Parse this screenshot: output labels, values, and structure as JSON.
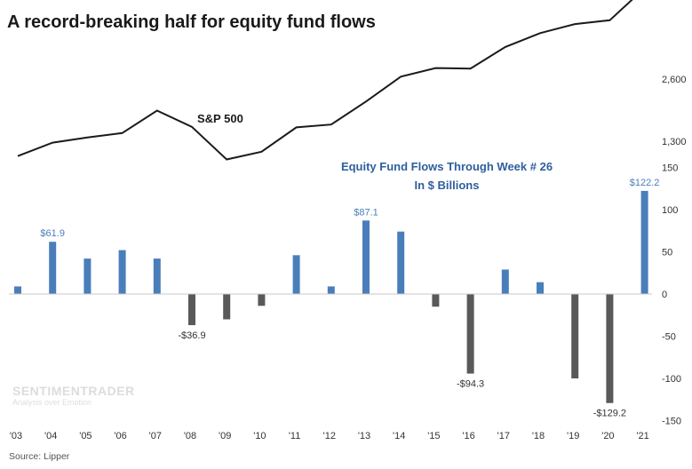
{
  "title": "A record-breaking half for equity fund flows",
  "source": "Source: Lipper",
  "watermark": {
    "name": "SENTIMENTRADER",
    "tagline": "Analysis over Emotion"
  },
  "colors": {
    "positive_bar": "#4a7ebb",
    "negative_bar": "#595959",
    "line": "#1a1a1a",
    "fund_title": "#2e5f9e"
  },
  "chart_data": [
    {
      "type": "line",
      "series_label": "S&P 500",
      "x": [
        "'03",
        "'04",
        "'05",
        "'06",
        "'07",
        "'08",
        "'09",
        "'10",
        "'11",
        "'12",
        "'13",
        "'14",
        "'15",
        "'16",
        "'17",
        "'18",
        "'19",
        "'20",
        "'21"
      ],
      "values": [
        990,
        1270,
        1380,
        1470,
        1940,
        1600,
        920,
        1080,
        1590,
        1650,
        2130,
        2650,
        2830,
        2820,
        3270,
        3560,
        3750,
        3830,
        4500
      ],
      "y_ticks": [
        "1,300",
        "2,600"
      ],
      "y_tick_values": [
        1300,
        2600
      ],
      "ylim": [
        800,
        4650
      ]
    },
    {
      "type": "bar",
      "title_lines": [
        "Equity Fund Flows Through Week # 26",
        "In $ Billions"
      ],
      "categories": [
        "'03",
        "'04",
        "'05",
        "'06",
        "'07",
        "'08",
        "'09",
        "'10",
        "'11",
        "'12",
        "'13",
        "'14",
        "'15",
        "'16",
        "'17",
        "'18",
        "'19",
        "'20",
        "'21"
      ],
      "values": [
        9,
        61.9,
        42,
        52,
        42,
        -36.9,
        -30,
        -14,
        46,
        9,
        87.1,
        74,
        -15,
        -94.3,
        29,
        14,
        -100,
        -129.2,
        122.2
      ],
      "data_labels": {
        "1": "$61.9",
        "5": "-$36.9",
        "10": "$87.1",
        "13": "-$94.3",
        "17": "-$129.2",
        "18": "$122.2"
      },
      "y_ticks": [
        "150",
        "100",
        "50",
        "0",
        "-50",
        "-100",
        "-150"
      ],
      "y_tick_values": [
        150,
        100,
        50,
        0,
        -50,
        -100,
        -150
      ],
      "ylim": [
        -150,
        150
      ]
    }
  ]
}
